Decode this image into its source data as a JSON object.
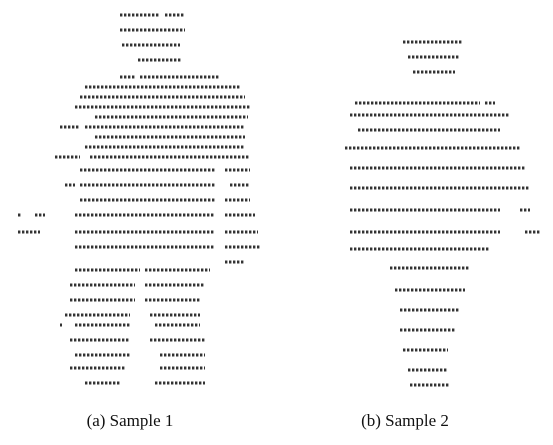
{
  "panels": [
    {
      "caption": "(a) Sample 1"
    },
    {
      "caption": "(b) Sample 2"
    }
  ]
}
